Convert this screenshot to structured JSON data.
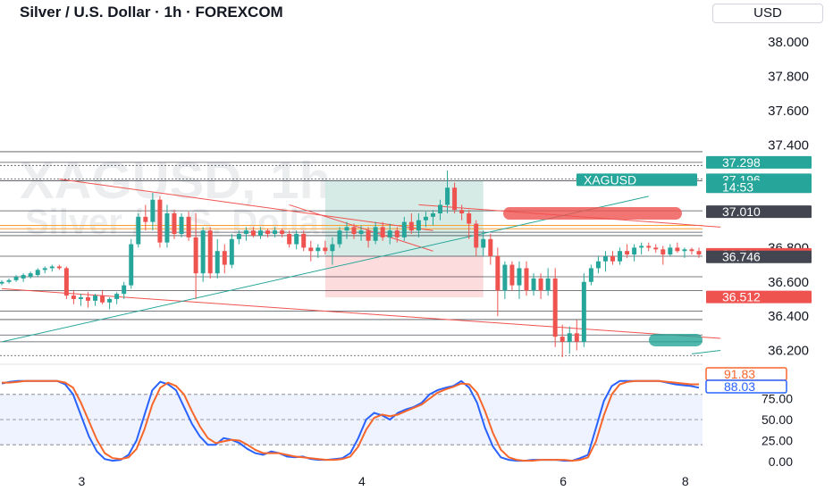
{
  "header": {
    "title": "Silver / U.S. Dollar · 1h · FOREXCOM",
    "currency": "USD",
    "watermark_symbol": "XAGUSD, 1h",
    "watermark_name": "Silver / U.S. Dollar"
  },
  "colors": {
    "up": "#26a69a",
    "down": "#ef5350",
    "grid_line": "#131722",
    "orange": "#f7a02c",
    "stoch_k": "#2962ff",
    "stoch_d": "#f7672c",
    "dark_label": "#434651",
    "long_profit": "#cfe8e2",
    "long_loss": "#fbd6d6"
  },
  "chart_data": [
    {
      "type": "candlestick",
      "title": "Silver / U.S. Dollar · 1h · FOREXCOM",
      "x_tick_labels": [
        "3",
        "4",
        "6",
        "8"
      ],
      "y_ticks": [
        36.2,
        36.4,
        36.6,
        36.8,
        37.0,
        37.2,
        37.4,
        37.6,
        37.8,
        38.0
      ],
      "y_tick_labels": [
        "36.200",
        "36.400",
        "36.600",
        "36.800",
        "37.000",
        "37.200",
        "37.400",
        "37.600",
        "37.800",
        "38.000"
      ],
      "ylim": [
        36.14,
        38.1
      ],
      "price_labels": [
        {
          "text": "37.298",
          "value": 37.298,
          "style": "green"
        },
        {
          "text": "XAGUSD",
          "value": 37.196,
          "style": "green"
        },
        {
          "text": "37.196",
          "value": 37.196,
          "style": "green"
        },
        {
          "text": "14:53",
          "value": 37.155,
          "style": "green"
        },
        {
          "text": "37.010",
          "value": 37.01,
          "style": "dark"
        },
        {
          "text": "36.761",
          "value": 36.761,
          "style": "red"
        },
        {
          "text": "36.746",
          "value": 36.746,
          "style": "dark"
        },
        {
          "text": "36.512",
          "value": 36.512,
          "style": "red"
        }
      ],
      "horizontal_levels": [
        37.36,
        37.298,
        37.28,
        37.2,
        37.19,
        37.015,
        36.89,
        36.87,
        36.75,
        36.63,
        36.55,
        36.43,
        36.38,
        36.29,
        36.25,
        36.17
      ],
      "orange_levels": [
        36.93,
        36.91
      ],
      "candles": [
        [
          36.59,
          36.61,
          36.58,
          36.6
        ],
        [
          36.6,
          36.62,
          36.59,
          36.61
        ],
        [
          36.61,
          36.64,
          36.6,
          36.63
        ],
        [
          36.62,
          36.65,
          36.6,
          36.64
        ],
        [
          36.63,
          36.66,
          36.62,
          36.65
        ],
        [
          36.64,
          36.68,
          36.63,
          36.67
        ],
        [
          36.67,
          36.69,
          36.65,
          36.68
        ],
        [
          36.68,
          36.7,
          36.66,
          36.69
        ],
        [
          36.69,
          36.7,
          36.67,
          36.68
        ],
        [
          36.68,
          36.69,
          36.5,
          36.52
        ],
        [
          36.52,
          36.55,
          36.47,
          36.5
        ],
        [
          36.5,
          36.53,
          36.46,
          36.51
        ],
        [
          36.51,
          36.54,
          36.45,
          36.49
        ],
        [
          36.49,
          36.53,
          36.46,
          36.52
        ],
        [
          36.52,
          36.55,
          36.47,
          36.48
        ],
        [
          36.48,
          36.51,
          36.44,
          36.5
        ],
        [
          36.5,
          36.54,
          36.47,
          36.53
        ],
        [
          36.53,
          36.6,
          36.5,
          36.58
        ],
        [
          36.58,
          36.85,
          36.56,
          36.82
        ],
        [
          36.82,
          37.0,
          36.8,
          36.98
        ],
        [
          36.98,
          37.05,
          36.9,
          36.95
        ],
        [
          36.95,
          37.12,
          36.9,
          37.08
        ],
        [
          37.08,
          37.1,
          36.8,
          36.83
        ],
        [
          36.83,
          37.05,
          36.8,
          37.0
        ],
        [
          37.0,
          37.02,
          36.85,
          36.88
        ],
        [
          36.88,
          37.0,
          36.86,
          36.98
        ],
        [
          36.98,
          37.01,
          36.84,
          36.86
        ],
        [
          36.86,
          37.0,
          36.5,
          36.65
        ],
        [
          36.65,
          36.92,
          36.6,
          36.9
        ],
        [
          36.9,
          36.92,
          36.62,
          36.65
        ],
        [
          36.65,
          36.85,
          36.62,
          36.78
        ],
        [
          36.78,
          36.82,
          36.65,
          36.7
        ],
        [
          36.7,
          36.88,
          36.68,
          36.85
        ],
        [
          36.85,
          36.9,
          36.82,
          36.88
        ],
        [
          36.88,
          36.92,
          36.84,
          36.9
        ],
        [
          36.9,
          36.92,
          36.86,
          36.87
        ],
        [
          36.87,
          36.92,
          36.85,
          36.9
        ],
        [
          36.9,
          36.91,
          36.86,
          36.88
        ],
        [
          36.88,
          36.92,
          36.86,
          36.9
        ],
        [
          36.9,
          36.91,
          36.86,
          36.88
        ],
        [
          36.88,
          36.9,
          36.8,
          36.82
        ],
        [
          36.82,
          36.9,
          36.79,
          36.88
        ],
        [
          36.88,
          36.9,
          36.78,
          36.8
        ],
        [
          36.8,
          36.84,
          36.72,
          36.78
        ],
        [
          36.78,
          36.82,
          36.74,
          36.8
        ],
        [
          36.8,
          36.84,
          36.76,
          36.78
        ],
        [
          36.78,
          36.86,
          36.7,
          36.82
        ],
        [
          36.82,
          36.92,
          36.8,
          36.9
        ],
        [
          36.9,
          36.95,
          36.85,
          36.92
        ],
        [
          36.92,
          36.94,
          36.85,
          36.88
        ],
        [
          36.88,
          36.93,
          36.84,
          36.9
        ],
        [
          36.9,
          36.92,
          36.8,
          36.84
        ],
        [
          36.84,
          36.95,
          36.82,
          36.92
        ],
        [
          36.92,
          36.95,
          36.84,
          36.86
        ],
        [
          36.86,
          36.94,
          36.82,
          36.9
        ],
        [
          36.9,
          36.92,
          36.83,
          36.86
        ],
        [
          36.86,
          36.98,
          36.84,
          36.95
        ],
        [
          36.95,
          37.0,
          36.88,
          36.9
        ],
        [
          36.9,
          37.0,
          36.86,
          36.96
        ],
        [
          36.96,
          37.01,
          36.92,
          36.98
        ],
        [
          36.98,
          37.02,
          36.93,
          37.0
        ],
        [
          37.0,
          37.08,
          36.96,
          37.05
        ],
        [
          37.05,
          37.25,
          37.0,
          37.15
        ],
        [
          37.15,
          37.18,
          37.0,
          37.02
        ],
        [
          37.02,
          37.05,
          36.96,
          37.0
        ],
        [
          37.0,
          37.02,
          36.85,
          36.94
        ],
        [
          36.94,
          36.96,
          36.75,
          36.8
        ],
        [
          36.8,
          36.9,
          36.75,
          36.85
        ],
        [
          36.85,
          36.88,
          36.7,
          36.75
        ],
        [
          36.75,
          36.8,
          36.4,
          36.55
        ],
        [
          36.55,
          36.72,
          36.5,
          36.7
        ],
        [
          36.7,
          36.72,
          36.55,
          36.58
        ],
        [
          36.58,
          36.72,
          36.5,
          36.68
        ],
        [
          36.68,
          36.72,
          36.52,
          36.55
        ],
        [
          36.55,
          36.65,
          36.52,
          36.62
        ],
        [
          36.62,
          36.65,
          36.5,
          36.55
        ],
        [
          36.55,
          36.68,
          36.52,
          36.62
        ],
        [
          36.62,
          36.68,
          36.22,
          36.28
        ],
        [
          36.28,
          36.35,
          36.16,
          36.25
        ],
        [
          36.25,
          36.34,
          36.18,
          36.3
        ],
        [
          36.3,
          36.38,
          36.2,
          36.25
        ],
        [
          36.25,
          36.65,
          36.22,
          36.6
        ],
        [
          36.6,
          36.7,
          36.58,
          36.68
        ],
        [
          36.68,
          36.75,
          36.65,
          36.72
        ],
        [
          36.72,
          36.78,
          36.66,
          36.75
        ],
        [
          36.75,
          36.78,
          36.7,
          36.72
        ],
        [
          36.72,
          36.8,
          36.7,
          36.78
        ],
        [
          36.78,
          36.82,
          36.74,
          36.76
        ],
        [
          36.76,
          36.82,
          36.72,
          36.8
        ],
        [
          36.8,
          36.83,
          36.76,
          36.81
        ],
        [
          36.81,
          36.83,
          36.78,
          36.8
        ],
        [
          36.8,
          36.82,
          36.77,
          36.79
        ],
        [
          36.79,
          36.81,
          36.7,
          36.76
        ],
        [
          36.76,
          36.82,
          36.75,
          36.8
        ],
        [
          36.8,
          36.83,
          36.77,
          36.78
        ],
        [
          36.78,
          36.8,
          36.74,
          36.79
        ],
        [
          36.79,
          36.8,
          36.76,
          36.78
        ],
        [
          36.78,
          36.8,
          36.74,
          36.76
        ]
      ],
      "trendlines": [
        {
          "color": "#ef5350",
          "from": [
            0,
            36.56
          ],
          "to": [
            100,
            36.27
          ]
        },
        {
          "color": "#ef5350",
          "from": [
            8,
            37.2
          ],
          "to": [
            60,
            36.9
          ]
        },
        {
          "color": "#ef5350",
          "from": [
            40,
            37.05
          ],
          "to": [
            60,
            36.78
          ]
        },
        {
          "color": "#ef5350",
          "from": [
            58,
            37.05
          ],
          "to": [
            100,
            36.92
          ]
        },
        {
          "color": "#26a69a",
          "from": [
            0,
            36.25
          ],
          "to": [
            90,
            37.1
          ]
        },
        {
          "color": "#26a69a",
          "from": [
            96,
            36.18
          ],
          "to": [
            100,
            36.2
          ]
        }
      ],
      "position_box": {
        "from_index": 45,
        "to_index": 67,
        "entry": 36.75,
        "target": 37.19,
        "stop": 36.51
      },
      "highlight_ellipses": [
        {
          "color": "#ef5350",
          "center_index": 89,
          "value": 37.0
        },
        {
          "color": "#26a69a",
          "center_index": 97,
          "value": 36.26
        }
      ]
    },
    {
      "type": "line",
      "title": "",
      "ylim": [
        0,
        100
      ],
      "y_tick_labels": [
        "0.00",
        "25.00",
        "50.00",
        "75.00"
      ],
      "y_ticks": [
        0,
        25,
        50,
        75
      ],
      "band": [
        20,
        80
      ],
      "value_labels": [
        {
          "text": "91.83",
          "value": 91.83,
          "series": "d"
        },
        {
          "text": "88.03",
          "value": 88.03,
          "series": "k"
        }
      ],
      "series": [
        {
          "id": "k",
          "color": "#2962ff",
          "values": [
            93,
            95,
            96,
            96,
            96,
            96,
            96,
            96,
            92,
            80,
            55,
            30,
            12,
            3,
            1,
            2,
            8,
            25,
            55,
            85,
            95,
            92,
            85,
            65,
            45,
            30,
            20,
            20,
            28,
            26,
            22,
            15,
            10,
            8,
            12,
            10,
            6,
            5,
            6,
            3,
            2,
            2,
            3,
            4,
            10,
            28,
            50,
            58,
            55,
            50,
            58,
            62,
            65,
            70,
            80,
            85,
            88,
            90,
            96,
            88,
            70,
            40,
            18,
            5,
            2,
            1,
            1,
            2,
            2,
            2,
            2,
            1,
            1,
            4,
            8,
            40,
            72,
            90,
            96,
            96,
            96,
            96,
            96,
            96,
            94,
            92,
            91,
            90,
            88
          ]
        },
        {
          "id": "d",
          "color": "#f7672c",
          "values": [
            94,
            94,
            95,
            96,
            96,
            96,
            96,
            96,
            94,
            88,
            70,
            48,
            26,
            10,
            4,
            3,
            5,
            15,
            38,
            68,
            88,
            94,
            90,
            80,
            60,
            42,
            28,
            22,
            24,
            26,
            25,
            20,
            14,
            10,
            10,
            10,
            8,
            6,
            5,
            4,
            3,
            2,
            2,
            3,
            6,
            18,
            38,
            52,
            56,
            54,
            56,
            60,
            64,
            68,
            75,
            82,
            86,
            89,
            93,
            92,
            82,
            60,
            34,
            14,
            5,
            2,
            1,
            1,
            2,
            2,
            2,
            2,
            1,
            2,
            5,
            24,
            55,
            80,
            92,
            95,
            96,
            96,
            96,
            96,
            95,
            94,
            93,
            92,
            92
          ]
        }
      ]
    }
  ]
}
